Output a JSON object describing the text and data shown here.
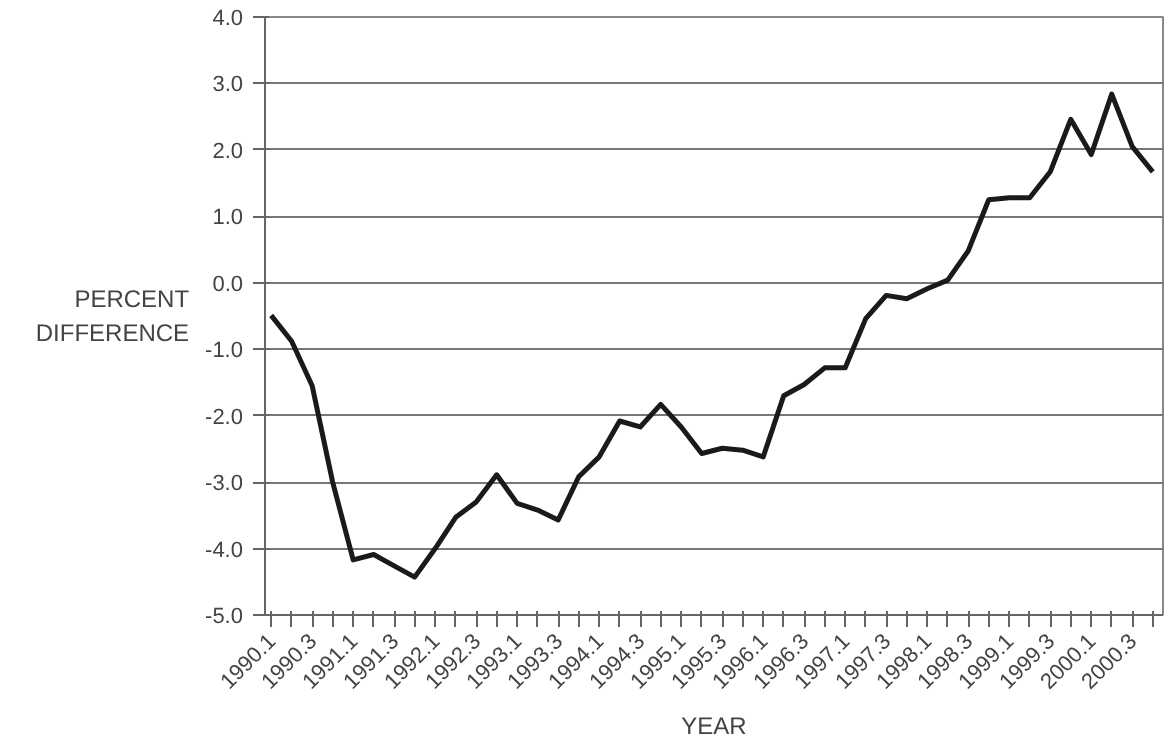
{
  "chart_data": {
    "type": "line",
    "xlabel": "YEAR",
    "ylabel": "PERCENT\nDIFFERENCE",
    "categories": [
      "1990.1",
      null,
      "1990.3",
      null,
      "1991.1",
      null,
      "1991.3",
      null,
      "1992.1",
      null,
      "1992.3",
      null,
      "1993.1",
      null,
      "1993.3",
      null,
      "1994.1",
      null,
      "1994.3",
      null,
      "1995.1",
      null,
      "1995.3",
      null,
      "1996.1",
      null,
      "1996.3",
      null,
      "1997.1",
      null,
      "1997.3",
      null,
      "1998.1",
      null,
      "1998.3",
      null,
      "1999.1",
      null,
      "1999.3",
      null,
      "2000.1",
      null,
      "2000.3",
      null
    ],
    "series": [
      {
        "color": "#1a1a1a",
        "values": [
          -0.49,
          -0.88,
          -1.55,
          -3.0,
          -4.17,
          -4.09,
          -4.26,
          -4.43,
          -4.0,
          -3.53,
          -3.3,
          -2.89,
          -3.32,
          -3.42,
          -3.57,
          -2.92,
          -2.62,
          -2.08,
          -2.17,
          -1.83,
          -2.17,
          -2.57,
          -2.49,
          -2.52,
          -2.62,
          -1.7,
          -1.53,
          -1.28,
          -1.28,
          -0.54,
          -0.19,
          -0.24,
          -0.09,
          0.04,
          0.48,
          1.25,
          1.28,
          1.28,
          1.67,
          2.46,
          1.93,
          2.84,
          2.05,
          1.67
        ]
      }
    ],
    "ylim": [
      -5,
      4
    ],
    "yticks": [
      {
        "value": -5,
        "label": "-5.0"
      },
      {
        "value": -4,
        "label": "-4.0"
      },
      {
        "value": -3,
        "label": "-3.0"
      },
      {
        "value": -2,
        "label": "-2.0"
      },
      {
        "value": -1,
        "label": "-1.0"
      },
      {
        "value": 0,
        "label": "0.0"
      },
      {
        "value": 1,
        "label": "1.0"
      },
      {
        "value": 2,
        "label": "2.0"
      },
      {
        "value": 3,
        "label": "3.0"
      },
      {
        "value": 4,
        "label": "4.0"
      }
    ],
    "grid": "y",
    "line_style": "solid",
    "marker": "none"
  }
}
